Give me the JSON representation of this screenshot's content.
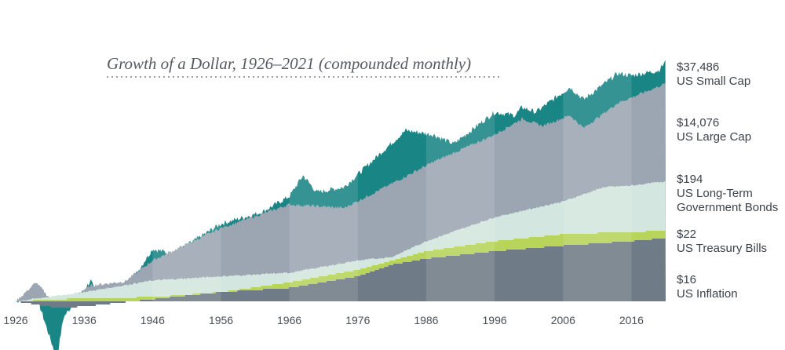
{
  "chart_data": {
    "type": "area",
    "title": "Growth of a Dollar, 1926–2021 (compounded monthly)",
    "xlabel": "",
    "ylabel": "",
    "x_ticks": [
      "1926",
      "1936",
      "1946",
      "1956",
      "1966",
      "1976",
      "1986",
      "1996",
      "2006",
      "2016"
    ],
    "xlim": [
      1926,
      2021
    ],
    "y_scale": "log",
    "series": [
      {
        "name": "US Small Cap",
        "end_value": "$37,486",
        "color": "#1a8585",
        "x": [
          1926,
          1929,
          1932,
          1933,
          1937,
          1938,
          1942,
          1946,
          1949,
          1956,
          1962,
          1966,
          1968,
          1970,
          1974,
          1980,
          1983,
          1987,
          1990,
          1996,
          1999,
          2000,
          2002,
          2007,
          2009,
          2014,
          2016,
          2020,
          2021
        ],
        "y": [
          1,
          1.3,
          0.08,
          0.5,
          2.5,
          1,
          1.6,
          10,
          8,
          30,
          50,
          100,
          250,
          120,
          150,
          800,
          1800,
          1500,
          1000,
          4000,
          3500,
          5000,
          4000,
          12000,
          7000,
          22000,
          20000,
          25000,
          37486
        ]
      },
      {
        "name": "US Large Cap",
        "end_value": "$14,076",
        "color": "#9ba6b2",
        "x": [
          1926,
          1929,
          1932,
          1937,
          1942,
          1946,
          1956,
          1966,
          1974,
          1980,
          1987,
          1996,
          2000,
          2003,
          2007,
          2009,
          2014,
          2021
        ],
        "y": [
          1,
          2.3,
          0.8,
          2,
          2.4,
          6,
          25,
          70,
          60,
          150,
          450,
          1500,
          3000,
          2200,
          3500,
          2000,
          6000,
          14076
        ]
      },
      {
        "name": "US Long-Term Government Bonds",
        "end_value": "$194",
        "color": "#d3e6df",
        "x": [
          1926,
          1936,
          1946,
          1956,
          1966,
          1976,
          1981,
          1986,
          1996,
          2006,
          2012,
          2016,
          2021
        ],
        "y": [
          1,
          1.5,
          2.5,
          3,
          3.5,
          6,
          7,
          14,
          40,
          80,
          150,
          160,
          194
        ]
      },
      {
        "name": "US Treasury Bills",
        "end_value": "$22",
        "color": "#b8d45a",
        "x": [
          1926,
          1936,
          1946,
          1956,
          1966,
          1976,
          1986,
          1996,
          2006,
          2016,
          2021
        ],
        "y": [
          1,
          1.15,
          1.2,
          1.5,
          2.3,
          4,
          9,
          14,
          19,
          21,
          22
        ]
      },
      {
        "name": "US Inflation",
        "end_value": "$16",
        "color": "#6f7b86",
        "x": [
          1926,
          1932,
          1936,
          1946,
          1956,
          1966,
          1976,
          1981,
          1986,
          1996,
          2006,
          2016,
          2021
        ],
        "y": [
          1,
          0.75,
          0.8,
          1.1,
          1.5,
          1.8,
          3,
          5,
          6.5,
          9,
          11.5,
          14,
          16
        ]
      }
    ]
  }
}
